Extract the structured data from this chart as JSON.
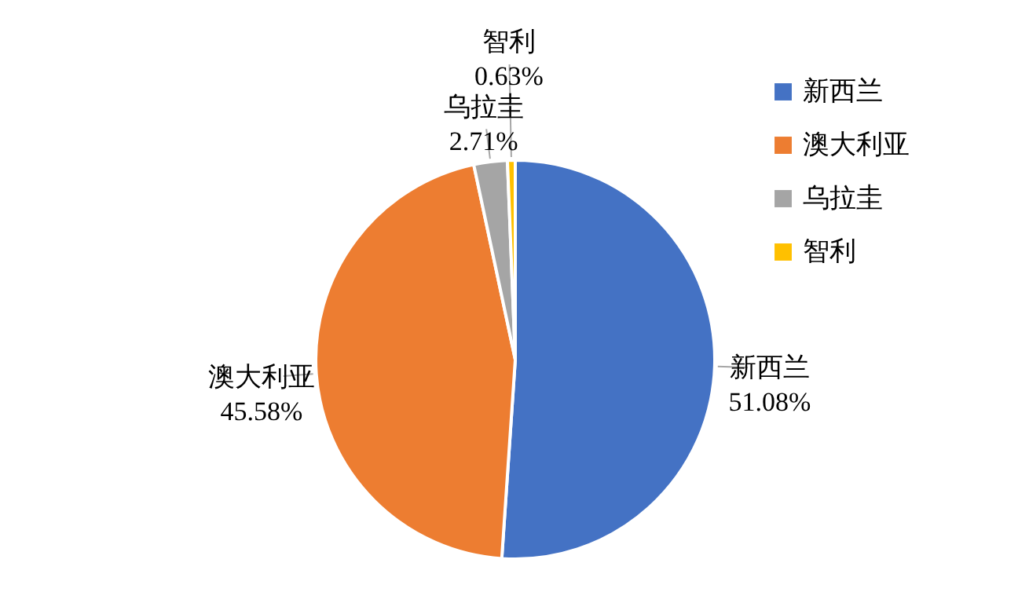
{
  "chart_data": {
    "type": "pie",
    "categories": [
      "新西兰",
      "澳大利亚",
      "乌拉圭",
      "智利"
    ],
    "values": [
      51.08,
      45.58,
      2.71,
      0.63
    ],
    "colors": [
      "#4472c4",
      "#ed7d31",
      "#a5a5a5",
      "#ffc000"
    ],
    "value_labels": [
      "51.08%",
      "45.58%",
      "2.71%",
      "0.63%"
    ],
    "legend": "right"
  }
}
